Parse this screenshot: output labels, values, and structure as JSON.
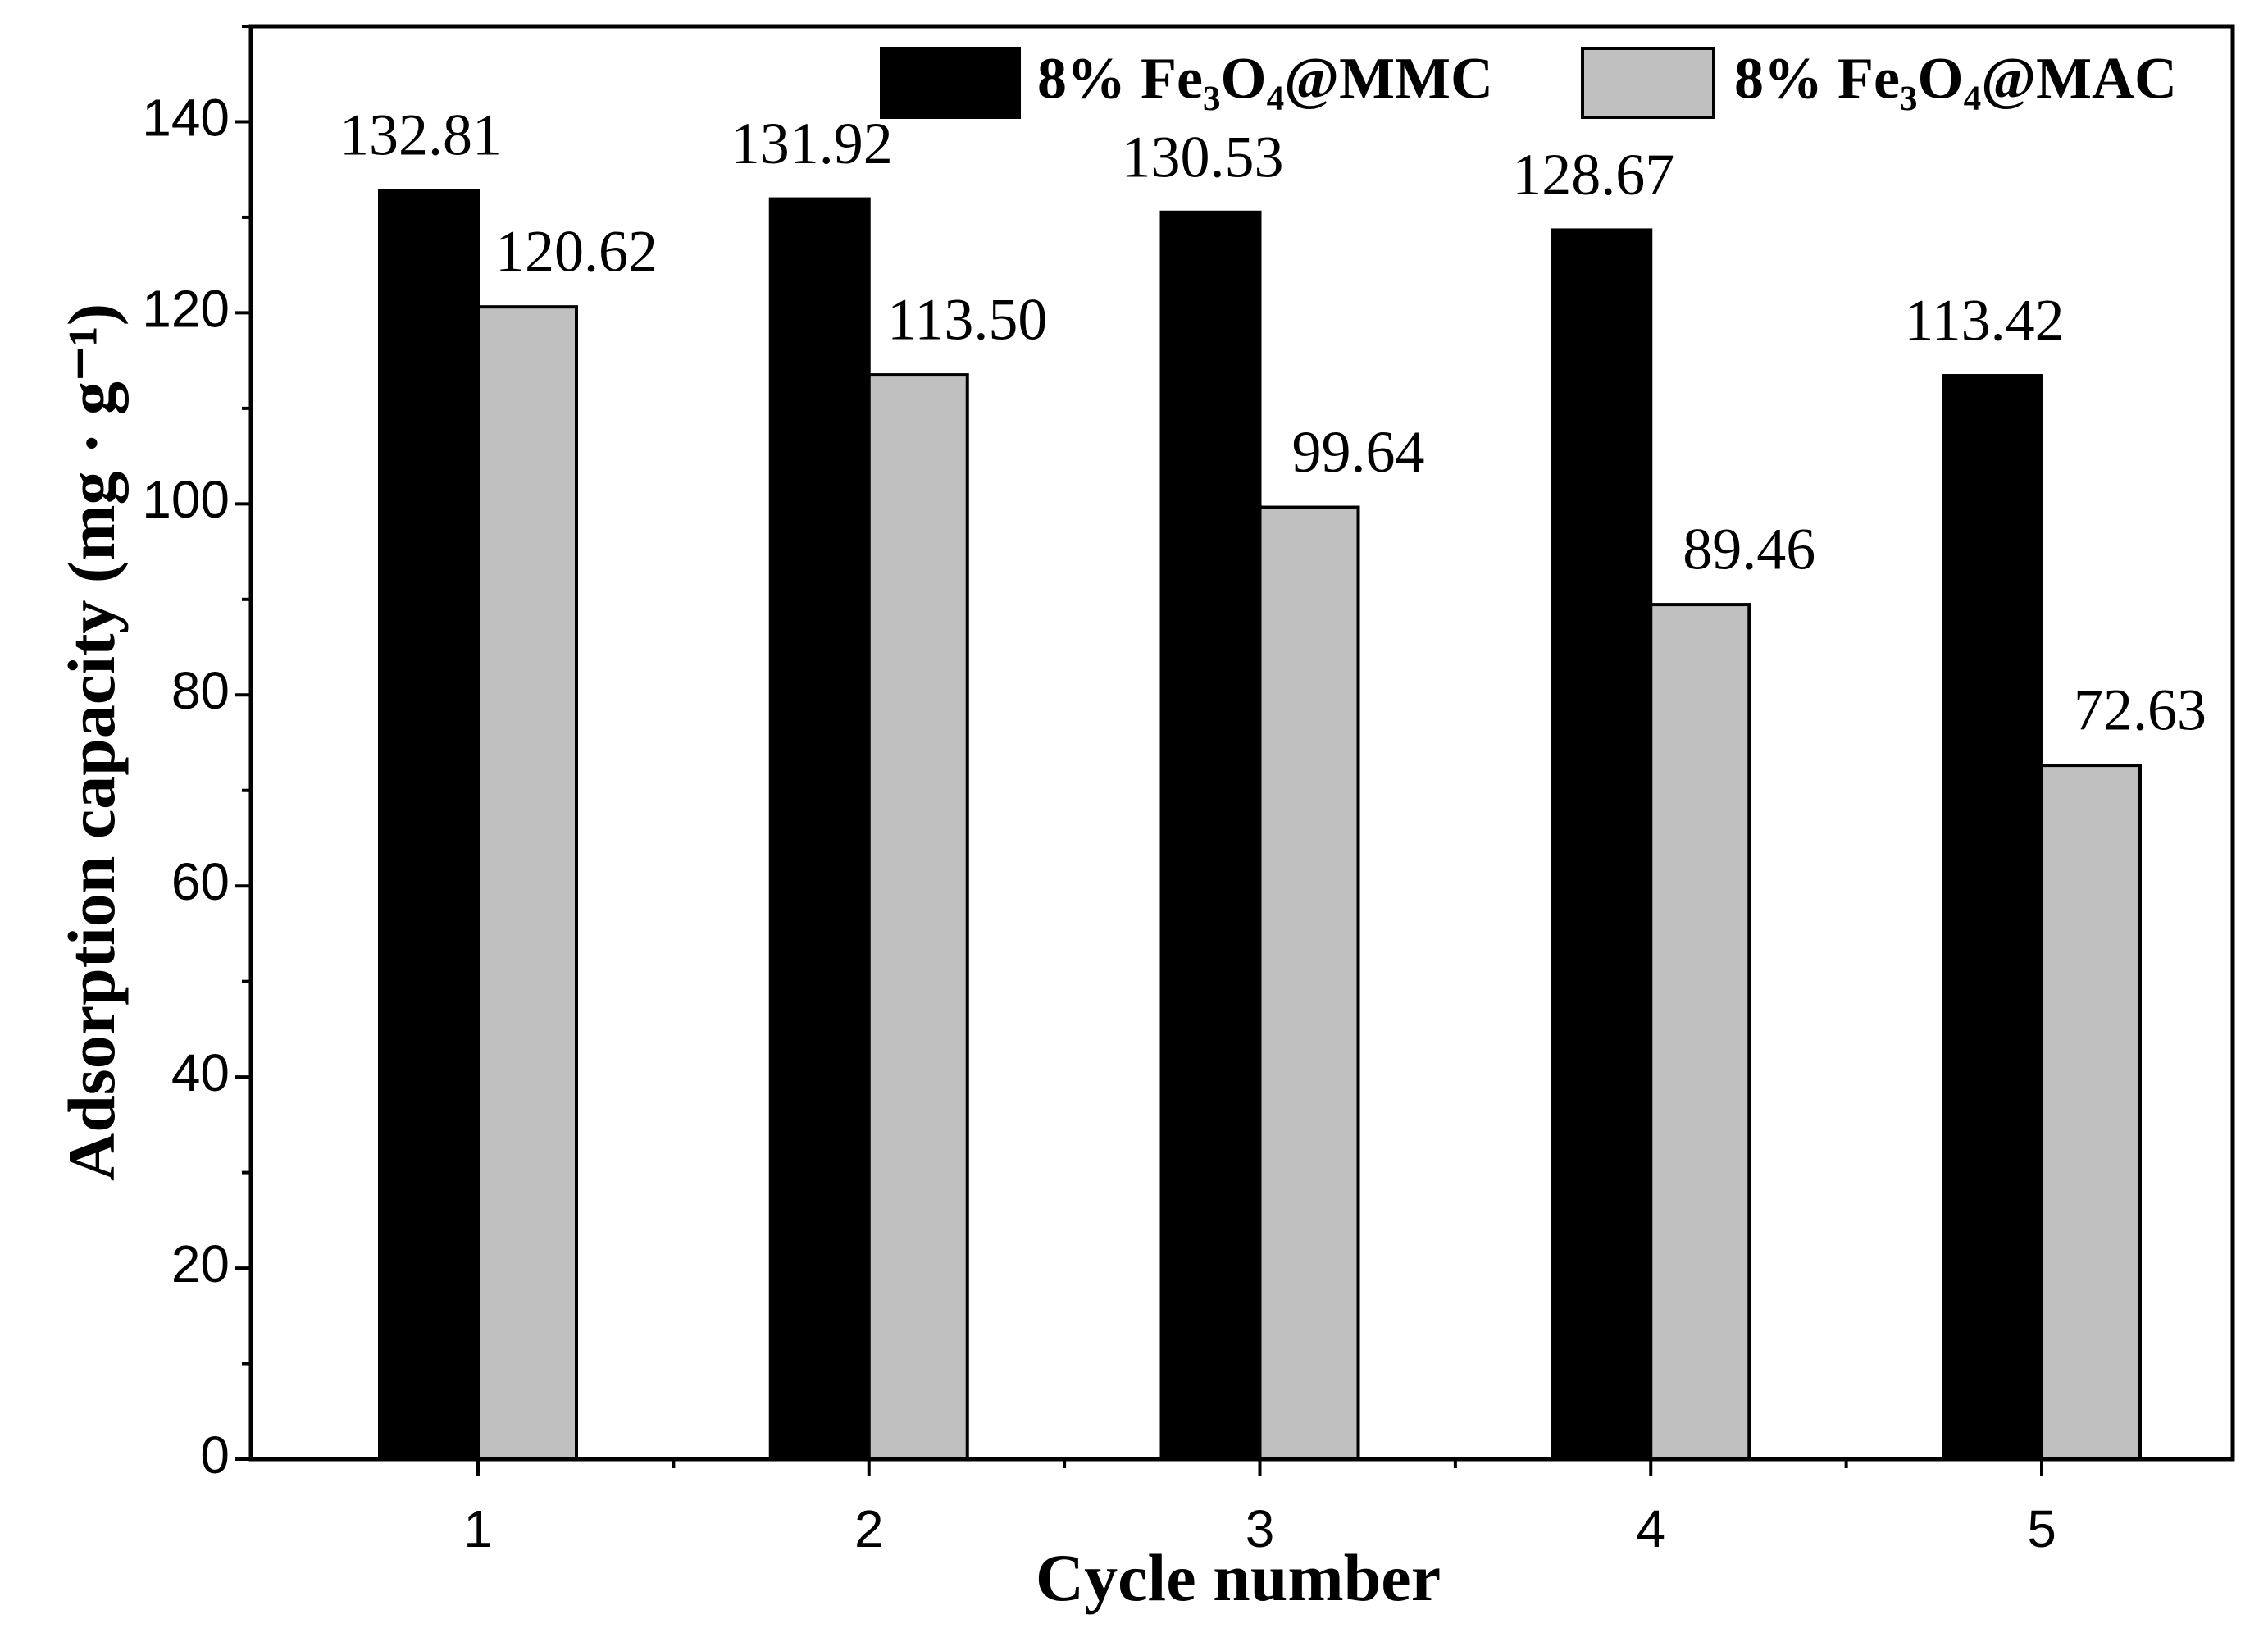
{
  "chart_data": {
    "type": "bar",
    "x_label": "Cycle number",
    "y_label": "Adsorption capacity (mg · g⁻¹)",
    "categories": [
      "1",
      "2",
      "3",
      "4",
      "5"
    ],
    "series": [
      {
        "name": "8% Fe₃O₄@MMC",
        "color": "#000000",
        "values": [
          132.81,
          131.92,
          130.53,
          128.67,
          113.42
        ],
        "value_labels": [
          "132.81",
          "131.92",
          "130.53",
          "128.67",
          "113.42"
        ]
      },
      {
        "name": "8% Fe₃O₄@MAC",
        "color": "#c0c0c0",
        "values": [
          120.62,
          113.5,
          99.64,
          89.46,
          72.63
        ],
        "value_labels": [
          "120.62",
          "113.50",
          "99.64",
          "89.46",
          "72.63"
        ]
      }
    ],
    "ylim": [
      0,
      150
    ],
    "yticks": [
      0,
      20,
      40,
      60,
      80,
      100,
      120,
      140
    ],
    "legend": "top-right"
  }
}
